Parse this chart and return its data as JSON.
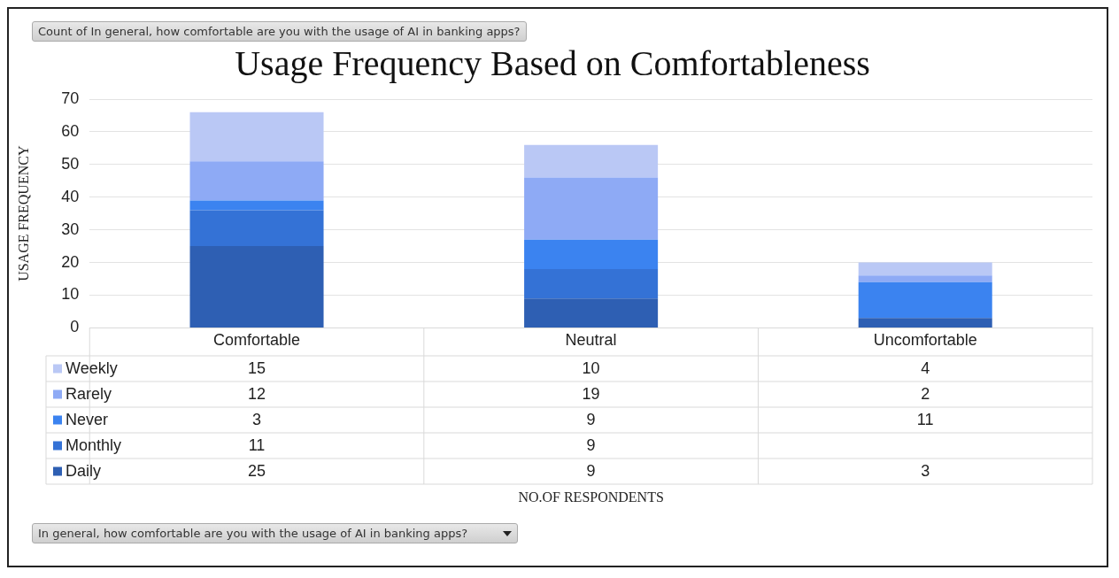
{
  "chart_data": {
    "type": "bar",
    "title": "Usage Frequency Based on Comfortableness",
    "ylabel": "USAGE FREQUENCY",
    "annotations": [
      "Count of In general, how comfortable are you with the usage of AI in banking apps?",
      "NO.OF RESPONDENTS",
      "In general, how comfortable are you with the usage of AI in banking apps?"
    ],
    "categories": [
      "Comfortable",
      "Neutral",
      "Uncomfortable"
    ],
    "stacked": true,
    "series": [
      {
        "name": "Daily",
        "color": "#2e5fb3",
        "values": [
          25,
          9,
          3
        ]
      },
      {
        "name": "Monthly",
        "color": "#3472d6",
        "values": [
          11,
          9,
          null
        ]
      },
      {
        "name": "Never",
        "color": "#3b83f0",
        "values": [
          3,
          9,
          11
        ]
      },
      {
        "name": "Rarely",
        "color": "#8eaaf5",
        "values": [
          12,
          19,
          2
        ]
      },
      {
        "name": "Weekly",
        "color": "#bac8f5",
        "values": [
          15,
          10,
          4
        ]
      }
    ],
    "ylim": [
      0,
      70
    ],
    "yticks": [
      0,
      10,
      20,
      30,
      40,
      50,
      60,
      70
    ],
    "grid": "y",
    "legend": "bottom left",
    "data_labels": true
  }
}
